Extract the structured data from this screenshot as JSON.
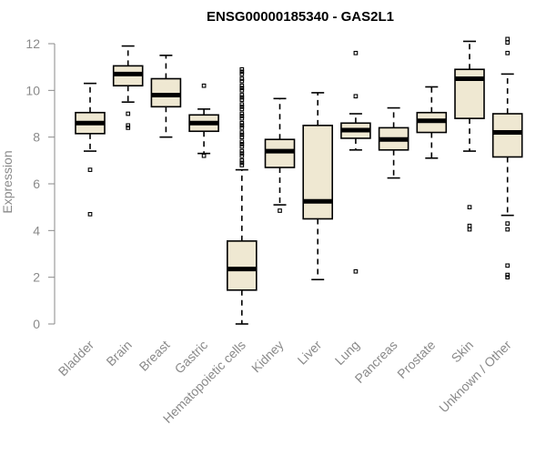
{
  "chart_data": {
    "type": "box",
    "title": "ENSG00000185340 - GAS2L1",
    "xlabel": "",
    "ylabel": "Expression",
    "ylim": [
      0,
      12
    ],
    "yticks": [
      0,
      2,
      4,
      6,
      8,
      10,
      12
    ],
    "grid": false,
    "legend": "none",
    "colors": {
      "box_fill": "#efe8d2",
      "stroke": "#000000",
      "axis": "#8a8a8a"
    },
    "categories": [
      "Bladder",
      "Brain",
      "Breast",
      "Gastric",
      "Hematopoietic cells",
      "Kidney",
      "Liver",
      "Lung",
      "Pancreas",
      "Prostate",
      "Skin",
      "Unknown / Other"
    ],
    "boxes": [
      {
        "whisker_low": 7.4,
        "q1": 8.15,
        "median": 8.6,
        "q3": 9.05,
        "whisker_high": 10.3,
        "outliers": [
          6.6,
          4.7
        ]
      },
      {
        "whisker_low": 9.5,
        "q1": 10.2,
        "median": 10.7,
        "q3": 11.05,
        "whisker_high": 11.9,
        "outliers": [
          9.0,
          8.5,
          8.4
        ]
      },
      {
        "whisker_low": 8.0,
        "q1": 9.3,
        "median": 9.8,
        "q3": 10.5,
        "whisker_high": 11.5,
        "outliers": []
      },
      {
        "whisker_low": 7.3,
        "q1": 8.25,
        "median": 8.6,
        "q3": 8.95,
        "whisker_high": 9.2,
        "outliers": [
          10.2,
          7.2
        ]
      },
      {
        "whisker_low": 0.0,
        "q1": 1.45,
        "median": 2.35,
        "q3": 3.55,
        "whisker_high": 6.6,
        "outliers": [
          10.9,
          10.8,
          10.5,
          10.2,
          10.0,
          9.8,
          9.6,
          9.4,
          9.2,
          9.0,
          8.8,
          8.6,
          8.4,
          8.2,
          8.0,
          7.8,
          7.6,
          7.4,
          7.2,
          7.0,
          6.8,
          10.7,
          10.4,
          10.1,
          9.7,
          9.3,
          8.9,
          8.5,
          8.1,
          7.7,
          7.3,
          6.9
        ]
      },
      {
        "whisker_low": 5.1,
        "q1": 6.7,
        "median": 7.4,
        "q3": 7.9,
        "whisker_high": 9.65,
        "outliers": [
          4.85
        ]
      },
      {
        "whisker_low": 1.9,
        "q1": 4.5,
        "median": 5.25,
        "q3": 8.5,
        "whisker_high": 9.9,
        "outliers": []
      },
      {
        "whisker_low": 7.45,
        "q1": 7.95,
        "median": 8.3,
        "q3": 8.6,
        "whisker_high": 9.0,
        "outliers": [
          11.6,
          9.75,
          2.25
        ]
      },
      {
        "whisker_low": 6.25,
        "q1": 7.45,
        "median": 7.9,
        "q3": 8.4,
        "whisker_high": 9.25,
        "outliers": []
      },
      {
        "whisker_low": 7.1,
        "q1": 8.2,
        "median": 8.7,
        "q3": 9.05,
        "whisker_high": 10.15,
        "outliers": []
      },
      {
        "whisker_low": 7.4,
        "q1": 8.8,
        "median": 10.5,
        "q3": 10.9,
        "whisker_high": 12.1,
        "outliers": [
          5.0,
          4.2,
          4.05
        ]
      },
      {
        "whisker_low": 4.65,
        "q1": 7.15,
        "median": 8.2,
        "q3": 9.0,
        "whisker_high": 10.7,
        "outliers": [
          12.2,
          12.05,
          11.6,
          4.3,
          4.05,
          2.5,
          2.1,
          2.0
        ]
      }
    ]
  }
}
